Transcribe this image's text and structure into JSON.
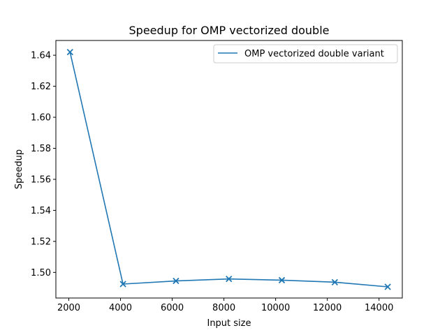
{
  "chart_data": {
    "type": "line",
    "title": "Speedup for OMP vectorized double",
    "xlabel": "Input size",
    "ylabel": "Speedup",
    "xlim": [
      1500,
      14900
    ],
    "ylim": [
      1.4835,
      1.6495
    ],
    "xticks": [
      2000,
      4000,
      6000,
      8000,
      10000,
      12000,
      14000
    ],
    "xtick_labels": [
      "2000",
      "4000",
      "6000",
      "8000",
      "10000",
      "12000",
      "14000"
    ],
    "yticks": [
      1.5,
      1.52,
      1.54,
      1.56,
      1.58,
      1.6,
      1.62,
      1.64
    ],
    "ytick_labels": [
      "1.50",
      "1.52",
      "1.54",
      "1.56",
      "1.58",
      "1.60",
      "1.62",
      "1.64"
    ],
    "grid": false,
    "legend_position": "top-right",
    "series": [
      {
        "name": "OMP vectorized double variant",
        "color": "#1f77b4",
        "marker": "x",
        "x": [
          2048,
          4096,
          6144,
          8192,
          10240,
          12288,
          14336
        ],
        "y": [
          1.642,
          1.4925,
          1.4945,
          1.4958,
          1.495,
          1.4937,
          1.4907
        ]
      }
    ]
  }
}
